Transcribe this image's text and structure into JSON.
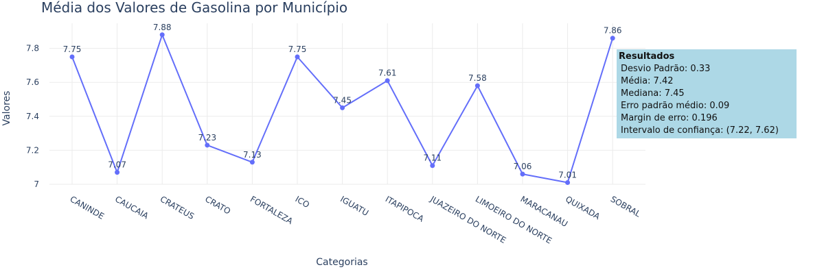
{
  "chart_data": {
    "type": "line",
    "title": "Média dos Valores de Gasolina por Município",
    "xlabel": "Categorias",
    "ylabel": "Valores",
    "categories": [
      "CANINDE",
      "CAUCAIA",
      "CRATEUS",
      "CRATO",
      "FORTALEZA",
      "ICO",
      "IGUATU",
      "ITAPIPOCA",
      "JUAZEIRO DO NORTE",
      "LIMOEIRO DO NORTE",
      "MARACANAU",
      "QUIXADA",
      "SOBRAL"
    ],
    "values": [
      7.75,
      7.07,
      7.88,
      7.23,
      7.13,
      7.75,
      7.45,
      7.61,
      7.11,
      7.58,
      7.06,
      7.01,
      7.86
    ],
    "data_labels": [
      "7.75",
      "7.07",
      "7.88",
      "7.23",
      "7.13",
      "7.75",
      "7.45",
      "7.61",
      "7.11",
      "7.58",
      "7.06",
      "7.01",
      "7.86"
    ],
    "yticks": [
      "7",
      "7.2",
      "7.4",
      "7.6",
      "7.8"
    ],
    "ytick_values": [
      7,
      7.2,
      7.4,
      7.6,
      7.8
    ],
    "ylim": [
      6.95,
      7.95
    ],
    "grid": true,
    "line_color": "#636efa"
  },
  "stats_box": {
    "title": "Resultados",
    "lines": [
      "Desvio Padrão: 0.33",
      "Média: 7.42",
      "Mediana: 7.45",
      "Erro padrão médio: 0.09",
      "Margin de erro: 0.196",
      "Intervalo de confiança: (7.22, 7.62)"
    ],
    "background": "#add8e6"
  }
}
